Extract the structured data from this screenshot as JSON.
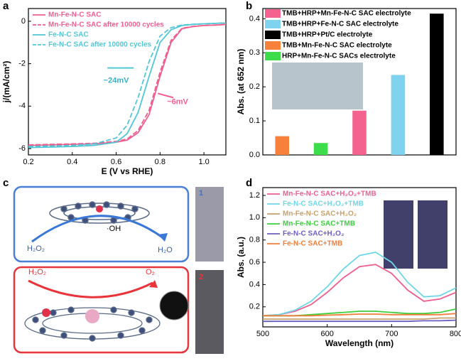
{
  "panels": [
    "a",
    "b",
    "c",
    "d"
  ],
  "diagram": {
    "labels": [
      "·OH",
      "H₂O₂",
      "H₂O",
      "H₂O₂",
      "O₂",
      "1",
      "2"
    ]
  },
  "chart_data": [
    {
      "type": "line",
      "xlabel": "E (V vs RHE)",
      "ylabel": "j/(mA/cm²)",
      "x": [
        0.2,
        0.3,
        0.4,
        0.5,
        0.6,
        0.65,
        0.7,
        0.75,
        0.8,
        0.85,
        0.9,
        0.95,
        1.0,
        1.05,
        1.1
      ],
      "xlim": [
        0.2,
        1.1
      ],
      "xticks": [
        0.2,
        0.4,
        0.6,
        0.8,
        {
          "value": 1,
          "label": "1.0"
        }
      ],
      "ylim": [
        -6.3,
        0.6
      ],
      "yticks": [
        -6,
        -4,
        -2,
        0
      ],
      "legend": "upper left",
      "annotations": [
        "~24mV",
        "~6mV"
      ],
      "series": [
        {
          "name": "Mn-Fe-N-C SAC",
          "color": "#ef5f8d",
          "style": "solid",
          "values": [
            -5.85,
            -5.83,
            -5.8,
            -5.78,
            -5.7,
            -5.6,
            -5.25,
            -4.4,
            -2.6,
            -1.0,
            -0.35,
            -0.25,
            -0.2,
            -0.18,
            -0.15
          ]
        },
        {
          "name": "Mn-Fe-N-C SAC after 10000 cycles",
          "color": "#ef5f8d",
          "style": "dashed",
          "values": [
            -5.83,
            -5.8,
            -5.78,
            -5.75,
            -5.66,
            -5.55,
            -5.15,
            -4.2,
            -2.4,
            -0.9,
            -0.33,
            -0.24,
            -0.2,
            -0.18,
            -0.15
          ]
        },
        {
          "name": "Fe-N-C SAC",
          "color": "#52c6d6",
          "style": "solid",
          "values": [
            -5.95,
            -5.93,
            -5.9,
            -5.85,
            -5.7,
            -5.3,
            -4.3,
            -2.6,
            -1.0,
            -0.4,
            -0.2,
            -0.15,
            -0.12,
            -0.1,
            -0.08
          ]
        },
        {
          "name": "Fe-N-C SAC after 10000 cycles",
          "color": "#52c6d6",
          "style": "dashed",
          "values": [
            -5.9,
            -5.88,
            -5.85,
            -5.78,
            -5.5,
            -4.9,
            -3.6,
            -1.9,
            -0.7,
            -0.3,
            -0.18,
            -0.14,
            -0.12,
            -0.1,
            -0.08
          ]
        }
      ]
    },
    {
      "type": "bar",
      "ylabel": "Abs. (at 652 nm)",
      "categories": [
        null,
        null,
        null,
        null,
        null
      ],
      "ylim": [
        0,
        0.43
      ],
      "yticks": [
        {
          "value": 0,
          "label": "0.0"
        },
        0.1,
        0.2,
        0.3,
        0.4
      ],
      "legend": "upper left",
      "series": [
        {
          "name": "TMB+HRP+Mn-Fe-N-C SAC electrolyte",
          "color": "#f4628f",
          "values": [
            null,
            null,
            0.13,
            null,
            null
          ]
        },
        {
          "name": "TMB+HRP+Fe-N-C SAC electrolyte",
          "color": "#7fd3ee",
          "values": [
            null,
            null,
            null,
            0.235,
            null
          ]
        },
        {
          "name": "TMB+HRP+Pt/C electrolyte",
          "color": "#000000",
          "values": [
            null,
            null,
            null,
            null,
            0.415
          ]
        },
        {
          "name": "TMB+Mn-Fe-N-C SAC electrolyte",
          "color": "#f7803a",
          "values": [
            0.055,
            null,
            null,
            null,
            null
          ]
        },
        {
          "name": "HRP+Mn-Fe-N-C SACs electrolyte",
          "color": "#3ddc4a",
          "values": [
            null,
            0.035,
            null,
            null,
            null
          ]
        }
      ]
    },
    {
      "type": "line",
      "xlabel": "Wavelength (nm)",
      "ylabel": "Abs. (a.u.)",
      "x": [
        500,
        525,
        550,
        575,
        600,
        625,
        650,
        675,
        700,
        725,
        750,
        775,
        800
      ],
      "xlim": [
        500,
        800
      ],
      "xticks": [
        500,
        600,
        700,
        800
      ],
      "ylim": [
        0.02,
        1.27
      ],
      "yticks": [
        0.2,
        0.4,
        0.6,
        0.8,
        {
          "value": 1,
          "label": "1.0"
        },
        1.2
      ],
      "legend": "upper left",
      "series": [
        {
          "name": "Mn-Fe-N-C SAC+H₂O₂+TMB",
          "color": "#ef5f8d",
          "style": "solid",
          "values": [
            0.12,
            0.13,
            0.16,
            0.22,
            0.33,
            0.46,
            0.56,
            0.58,
            0.5,
            0.35,
            0.25,
            0.27,
            0.33
          ]
        },
        {
          "name": "Fe-N-C SAC+H₂O₂+TMB",
          "color": "#6fd6ea",
          "style": "solid",
          "values": [
            0.12,
            0.13,
            0.17,
            0.25,
            0.38,
            0.54,
            0.66,
            0.69,
            0.6,
            0.42,
            0.29,
            0.3,
            0.37
          ]
        },
        {
          "name": "Mn-Fe-N-C SAC+H₂O₂",
          "color": "#c9a06c",
          "style": "solid",
          "values": [
            0.09,
            0.09,
            0.09,
            0.09,
            0.09,
            0.09,
            0.09,
            0.09,
            0.09,
            0.09,
            0.09,
            0.1,
            0.1
          ]
        },
        {
          "name": "Mn-Fe-N-C SAC+TMB",
          "color": "#3ccf3c",
          "style": "solid",
          "values": [
            0.12,
            0.12,
            0.12,
            0.13,
            0.14,
            0.15,
            0.16,
            0.16,
            0.15,
            0.14,
            0.14,
            0.15,
            0.18
          ]
        },
        {
          "name": "Fe-N-C SAC+H₂O₂",
          "color": "#6a5fc0",
          "style": "solid",
          "values": [
            0.07,
            0.07,
            0.07,
            0.07,
            0.07,
            0.07,
            0.07,
            0.07,
            0.07,
            0.07,
            0.075,
            0.075,
            0.08
          ]
        },
        {
          "name": "Fe-N-C SAC+TMB",
          "color": "#f07d3a",
          "style": "solid",
          "values": [
            0.12,
            0.12,
            0.12,
            0.12,
            0.125,
            0.13,
            0.135,
            0.135,
            0.13,
            0.13,
            0.13,
            0.13,
            0.14
          ]
        }
      ]
    }
  ]
}
